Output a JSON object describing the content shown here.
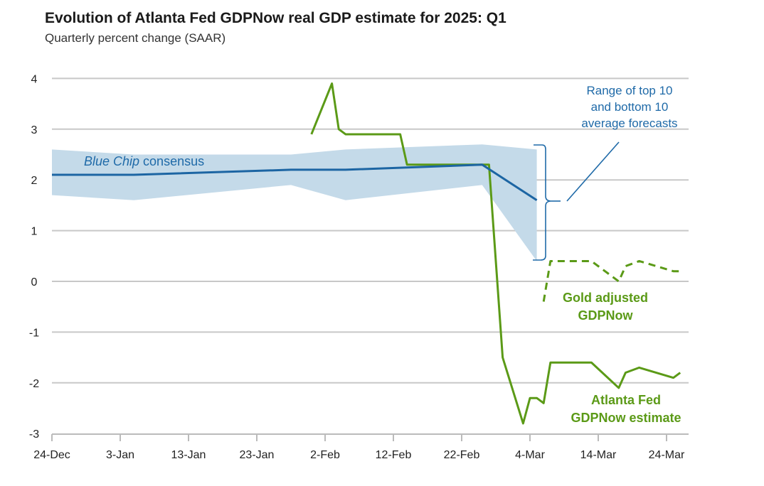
{
  "title": "Evolution of Atlanta Fed GDPNow real GDP estimate for 2025: Q1",
  "subtitle": "Quarterly percent change (SAAR)",
  "colors": {
    "gdpnow": "#5b9a17",
    "consensus": "#1c65a3",
    "range_band": "#c4dae9",
    "grid": "#c8c8c8",
    "annotation": "#1f6aa8"
  },
  "chart_data": {
    "type": "line",
    "title": "Evolution of Atlanta Fed GDPNow real GDP estimate for 2025: Q1",
    "subtitle": "Quarterly percent change (SAAR)",
    "xlabel": "",
    "ylabel": "",
    "ylim": [
      -3,
      4
    ],
    "xlim": [
      "2024-12-24",
      "2025-03-27"
    ],
    "grid": true,
    "yticks": [
      "4",
      "3",
      "2",
      "1",
      "0",
      "-1",
      "-2",
      "-3"
    ],
    "ytick_values": [
      4,
      3,
      2,
      1,
      0,
      -1,
      -2,
      -3
    ],
    "xticks": [
      "24-Dec",
      "3-Jan",
      "13-Jan",
      "23-Jan",
      "2-Feb",
      "12-Feb",
      "22-Feb",
      "4-Mar",
      "14-Mar",
      "24-Mar"
    ],
    "xtick_dates": [
      "2024-12-24",
      "2025-01-03",
      "2025-01-13",
      "2025-01-23",
      "2025-02-02",
      "2025-02-12",
      "2025-02-22",
      "2025-03-04",
      "2025-03-14",
      "2025-03-24"
    ],
    "series": [
      {
        "name": "Atlanta Fed GDPNow estimate",
        "style": "solid",
        "x": [
          "2025-01-31",
          "2025-02-03",
          "2025-02-04",
          "2025-02-05",
          "2025-02-13",
          "2025-02-14",
          "2025-02-26",
          "2025-02-28",
          "2025-03-03",
          "2025-03-04",
          "2025-03-05",
          "2025-03-06",
          "2025-03-07",
          "2025-03-13",
          "2025-03-17",
          "2025-03-18",
          "2025-03-20",
          "2025-03-25",
          "2025-03-26"
        ],
        "y": [
          2.9,
          3.9,
          3.0,
          2.9,
          2.9,
          2.3,
          2.3,
          -1.5,
          -2.8,
          -2.3,
          -2.3,
          -2.4,
          -1.6,
          -1.6,
          -2.1,
          -1.8,
          -1.7,
          -1.9,
          -1.8
        ]
      },
      {
        "name": "Gold adjusted GDPNow",
        "style": "dashed",
        "x": [
          "2025-03-06",
          "2025-03-07",
          "2025-03-13",
          "2025-03-17",
          "2025-03-18",
          "2025-03-20",
          "2025-03-25",
          "2025-03-26"
        ],
        "y": [
          -0.4,
          0.4,
          0.4,
          0.0,
          0.3,
          0.4,
          0.2,
          0.2
        ]
      },
      {
        "name": "Blue Chip consensus",
        "style": "solid",
        "x": [
          "2024-12-24",
          "2025-01-05",
          "2025-01-28",
          "2025-02-05",
          "2025-02-25",
          "2025-03-05"
        ],
        "y": [
          2.1,
          2.1,
          2.2,
          2.2,
          2.3,
          1.6
        ]
      }
    ],
    "range_band": {
      "name": "Range of top 10 and bottom 10 average forecasts",
      "x": [
        "2024-12-24",
        "2025-01-05",
        "2025-01-28",
        "2025-02-05",
        "2025-02-25",
        "2025-03-05"
      ],
      "upper": [
        2.6,
        2.5,
        2.5,
        2.6,
        2.7,
        2.6
      ],
      "lower": [
        1.7,
        1.6,
        1.9,
        1.6,
        1.9,
        0.4
      ]
    },
    "annotations": {
      "consensus_italic": "Blue Chip",
      "consensus_rest": " consensus",
      "gold_line1": "Gold adjusted",
      "gold_line2": "GDPNow",
      "gdpnow_line1": "Atlanta Fed",
      "gdpnow_line2": "GDPNow estimate",
      "range_line1": "Range of top 10",
      "range_line2": "and bottom 10",
      "range_line3": "average forecasts"
    }
  }
}
